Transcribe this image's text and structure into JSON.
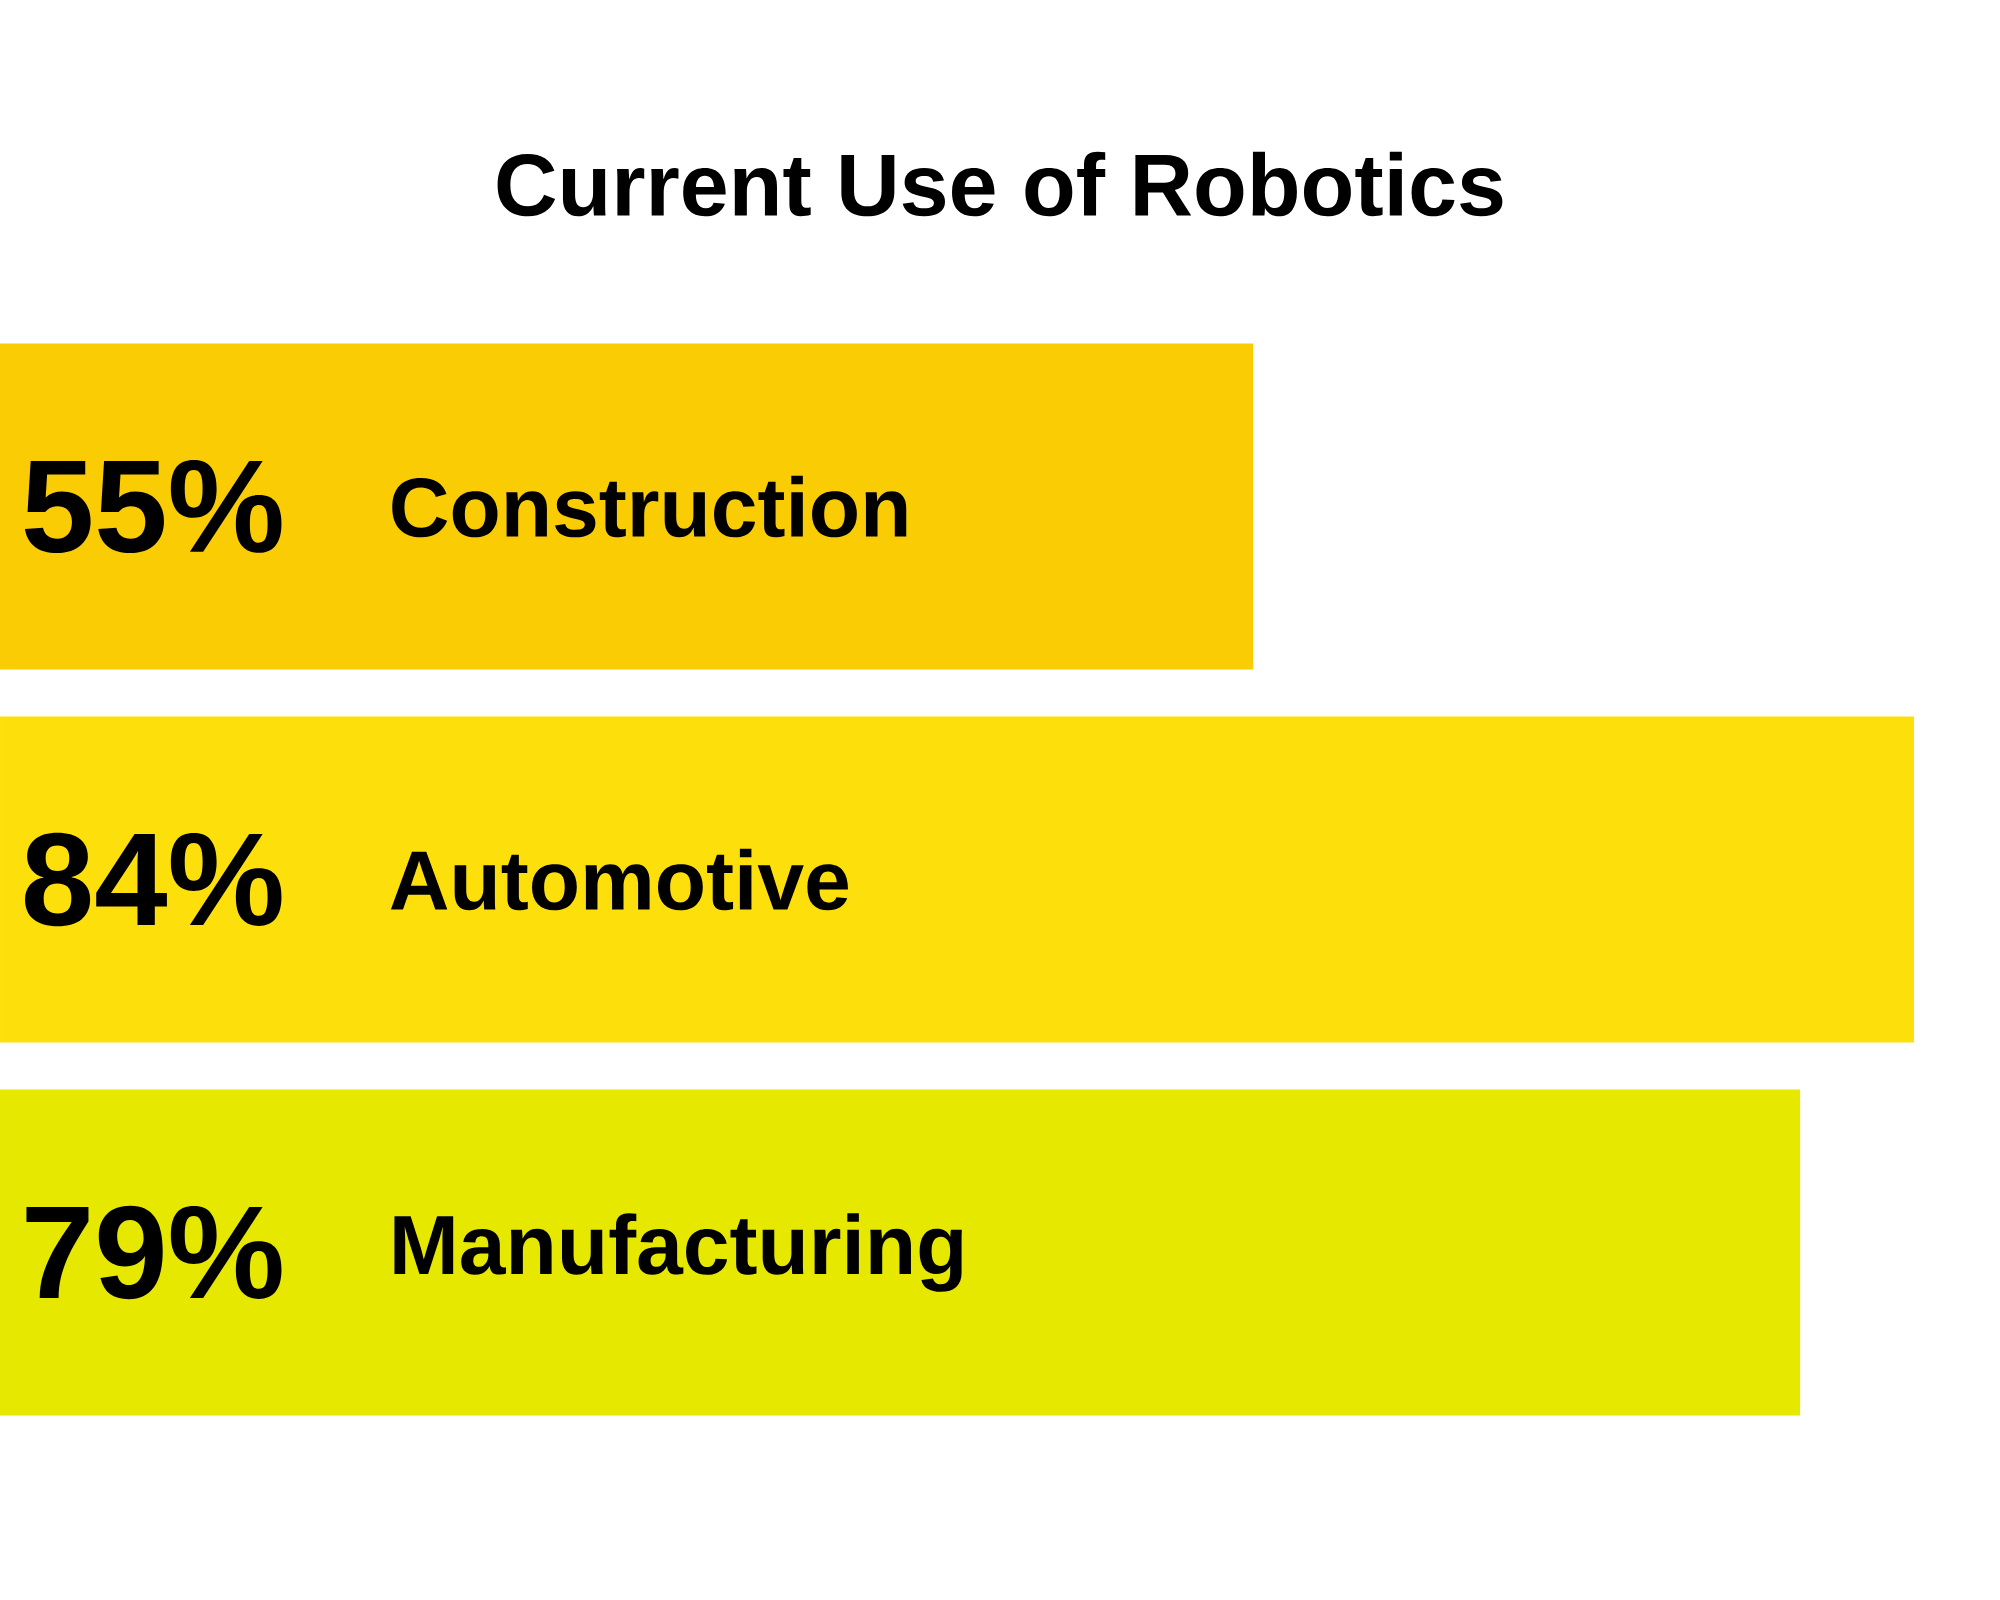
{
  "chart_data": {
    "type": "bar",
    "orientation": "horizontal",
    "title": "Current Use of Robotics",
    "categories": [
      "Construction",
      "Automotive",
      "Manufacturing"
    ],
    "values": [
      55,
      84,
      79
    ],
    "colors": [
      "#f9cc03",
      "#fde00b",
      "#e6e800"
    ],
    "value_labels": [
      "55%",
      "84%",
      "79%"
    ]
  }
}
